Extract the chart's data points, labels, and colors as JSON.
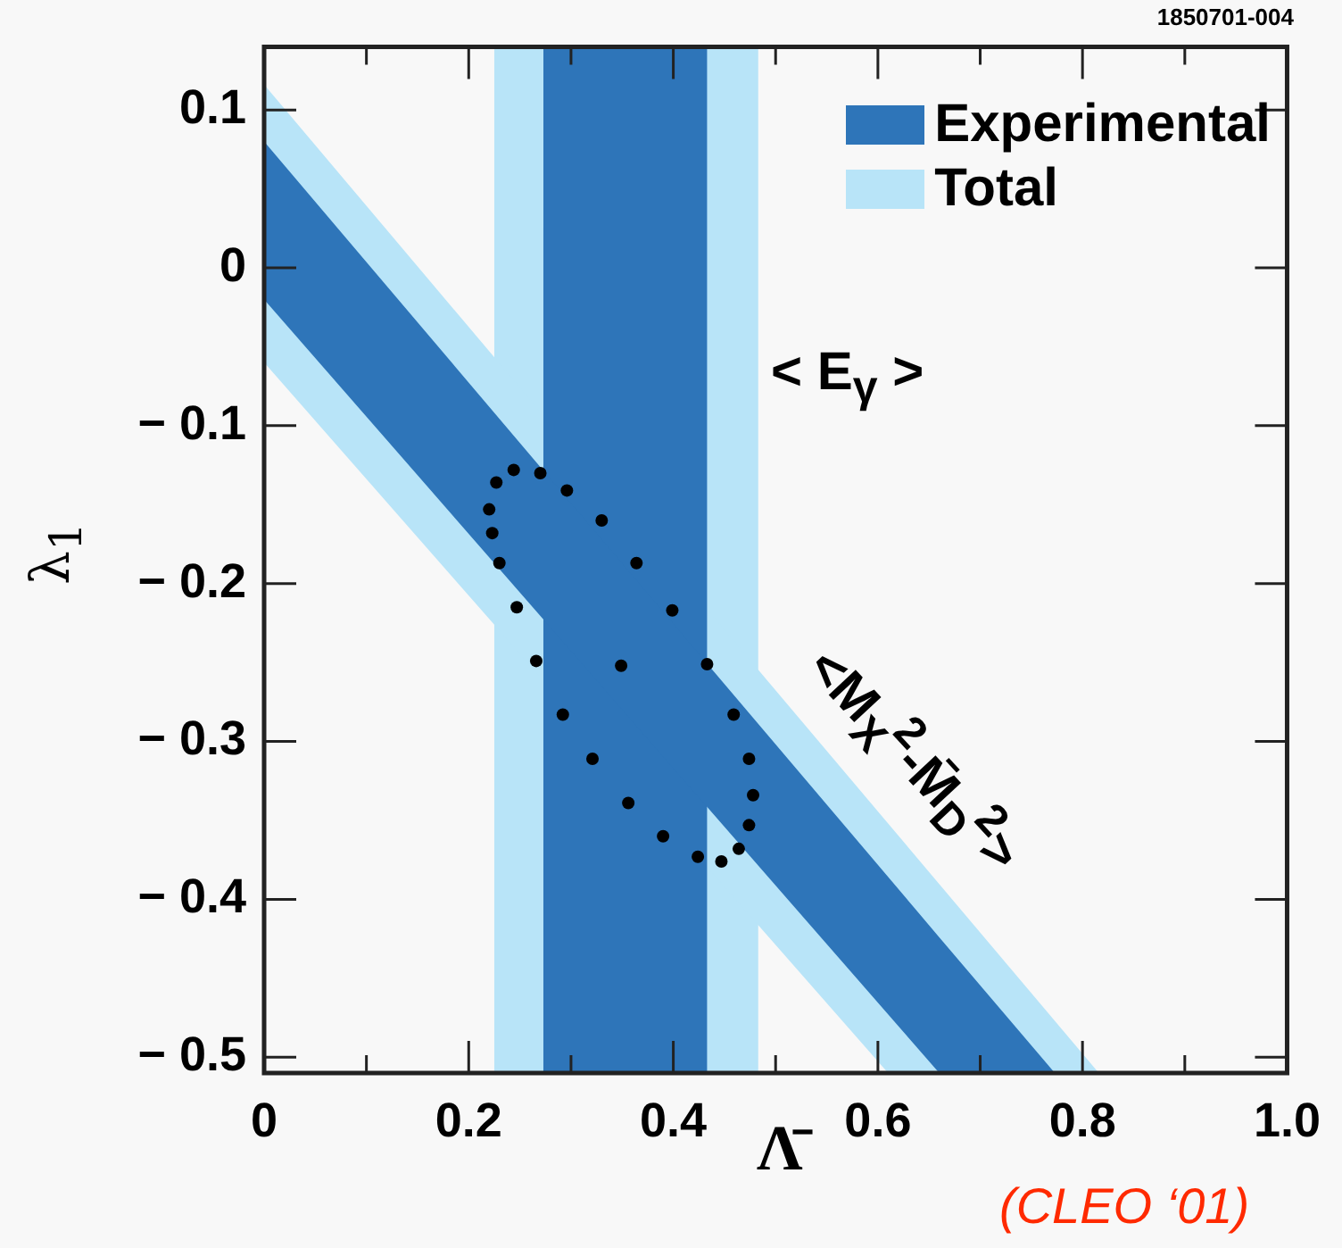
{
  "chart_data": {
    "type": "scatter",
    "xlabel": "Λ̄",
    "ylabel": "λ$_{1}$",
    "annotations": [
      "1850701-004",
      "< E$_{γ}$ >",
      "<M$_{X}$$^{2}$-M̄$_{D}$$^{2}$>",
      "(CLEO ‘01)"
    ],
    "xlim": [
      0,
      1
    ],
    "ylim": [
      -0.51,
      0.14
    ],
    "xticks": [
      0,
      {
        "value": 0.1,
        "label": null
      },
      0.2,
      {
        "value": 0.3,
        "label": null
      },
      0.4,
      {
        "value": 0.5,
        "label": null
      },
      0.6,
      {
        "value": 0.7,
        "label": null
      },
      0.8,
      {
        "value": 0.9,
        "label": null
      },
      {
        "value": 1,
        "label": "1.0"
      }
    ],
    "yticks": [
      {
        "value": -0.5,
        "label": "− 0.5"
      },
      {
        "value": -0.4,
        "label": "− 0.4"
      },
      {
        "value": -0.3,
        "label": "− 0.3"
      },
      {
        "value": -0.2,
        "label": "− 0.2"
      },
      {
        "value": -0.1,
        "label": "− 0.1"
      },
      0,
      0.1
    ],
    "grid": false,
    "legend": "top right",
    "bands": [
      {
        "axis": "x",
        "from": 0.225,
        "to": 0.483,
        "color": "#b8e4f8"
      },
      {
        "axis": "x",
        "from": 0.273,
        "to": 0.433,
        "color": "#2e75b9"
      }
    ],
    "series": [
      {
        "name": "Total",
        "type": "area",
        "color": "#b8e4f8",
        "x": [
          0,
          0.61,
          0.816
        ],
        "values": [
          null,
          null,
          null
        ],
        "lower": [
          -0.06,
          -0.51,
          -0.51
        ],
        "upper": [
          0.116,
          -0.352,
          -0.51
        ]
      },
      {
        "name": "Experimental",
        "type": "area",
        "color": "#2e75b9",
        "x": [
          0,
          0.66,
          0.773
        ],
        "values": [
          null,
          null,
          null
        ],
        "lower": [
          -0.02,
          -0.51,
          -0.51
        ],
        "upper": [
          0.08,
          -0.424,
          -0.51
        ]
      },
      {
        "type": "scatter",
        "marker": "circle",
        "color": "#000000",
        "x": [
          0.244,
          0.27,
          0.296,
          0.33,
          0.364,
          0.399,
          0.433,
          0.459,
          0.474,
          0.478,
          0.474,
          0.464,
          0.447,
          0.424,
          0.39,
          0.356,
          0.321,
          0.292,
          0.266,
          0.247,
          0.23,
          0.223,
          0.22,
          0.227
        ],
        "values": [
          -0.128,
          -0.13,
          -0.141,
          -0.16,
          -0.187,
          -0.217,
          -0.251,
          -0.283,
          -0.311,
          -0.334,
          -0.353,
          -0.368,
          -0.376,
          -0.373,
          -0.36,
          -0.339,
          -0.311,
          -0.283,
          -0.249,
          -0.215,
          -0.187,
          -0.168,
          -0.153,
          -0.136
        ]
      },
      {
        "type": "scatter",
        "marker": "circle",
        "color": "#000000",
        "x": [
          0.349
        ],
        "values": [
          -0.252
        ]
      }
    ]
  }
}
